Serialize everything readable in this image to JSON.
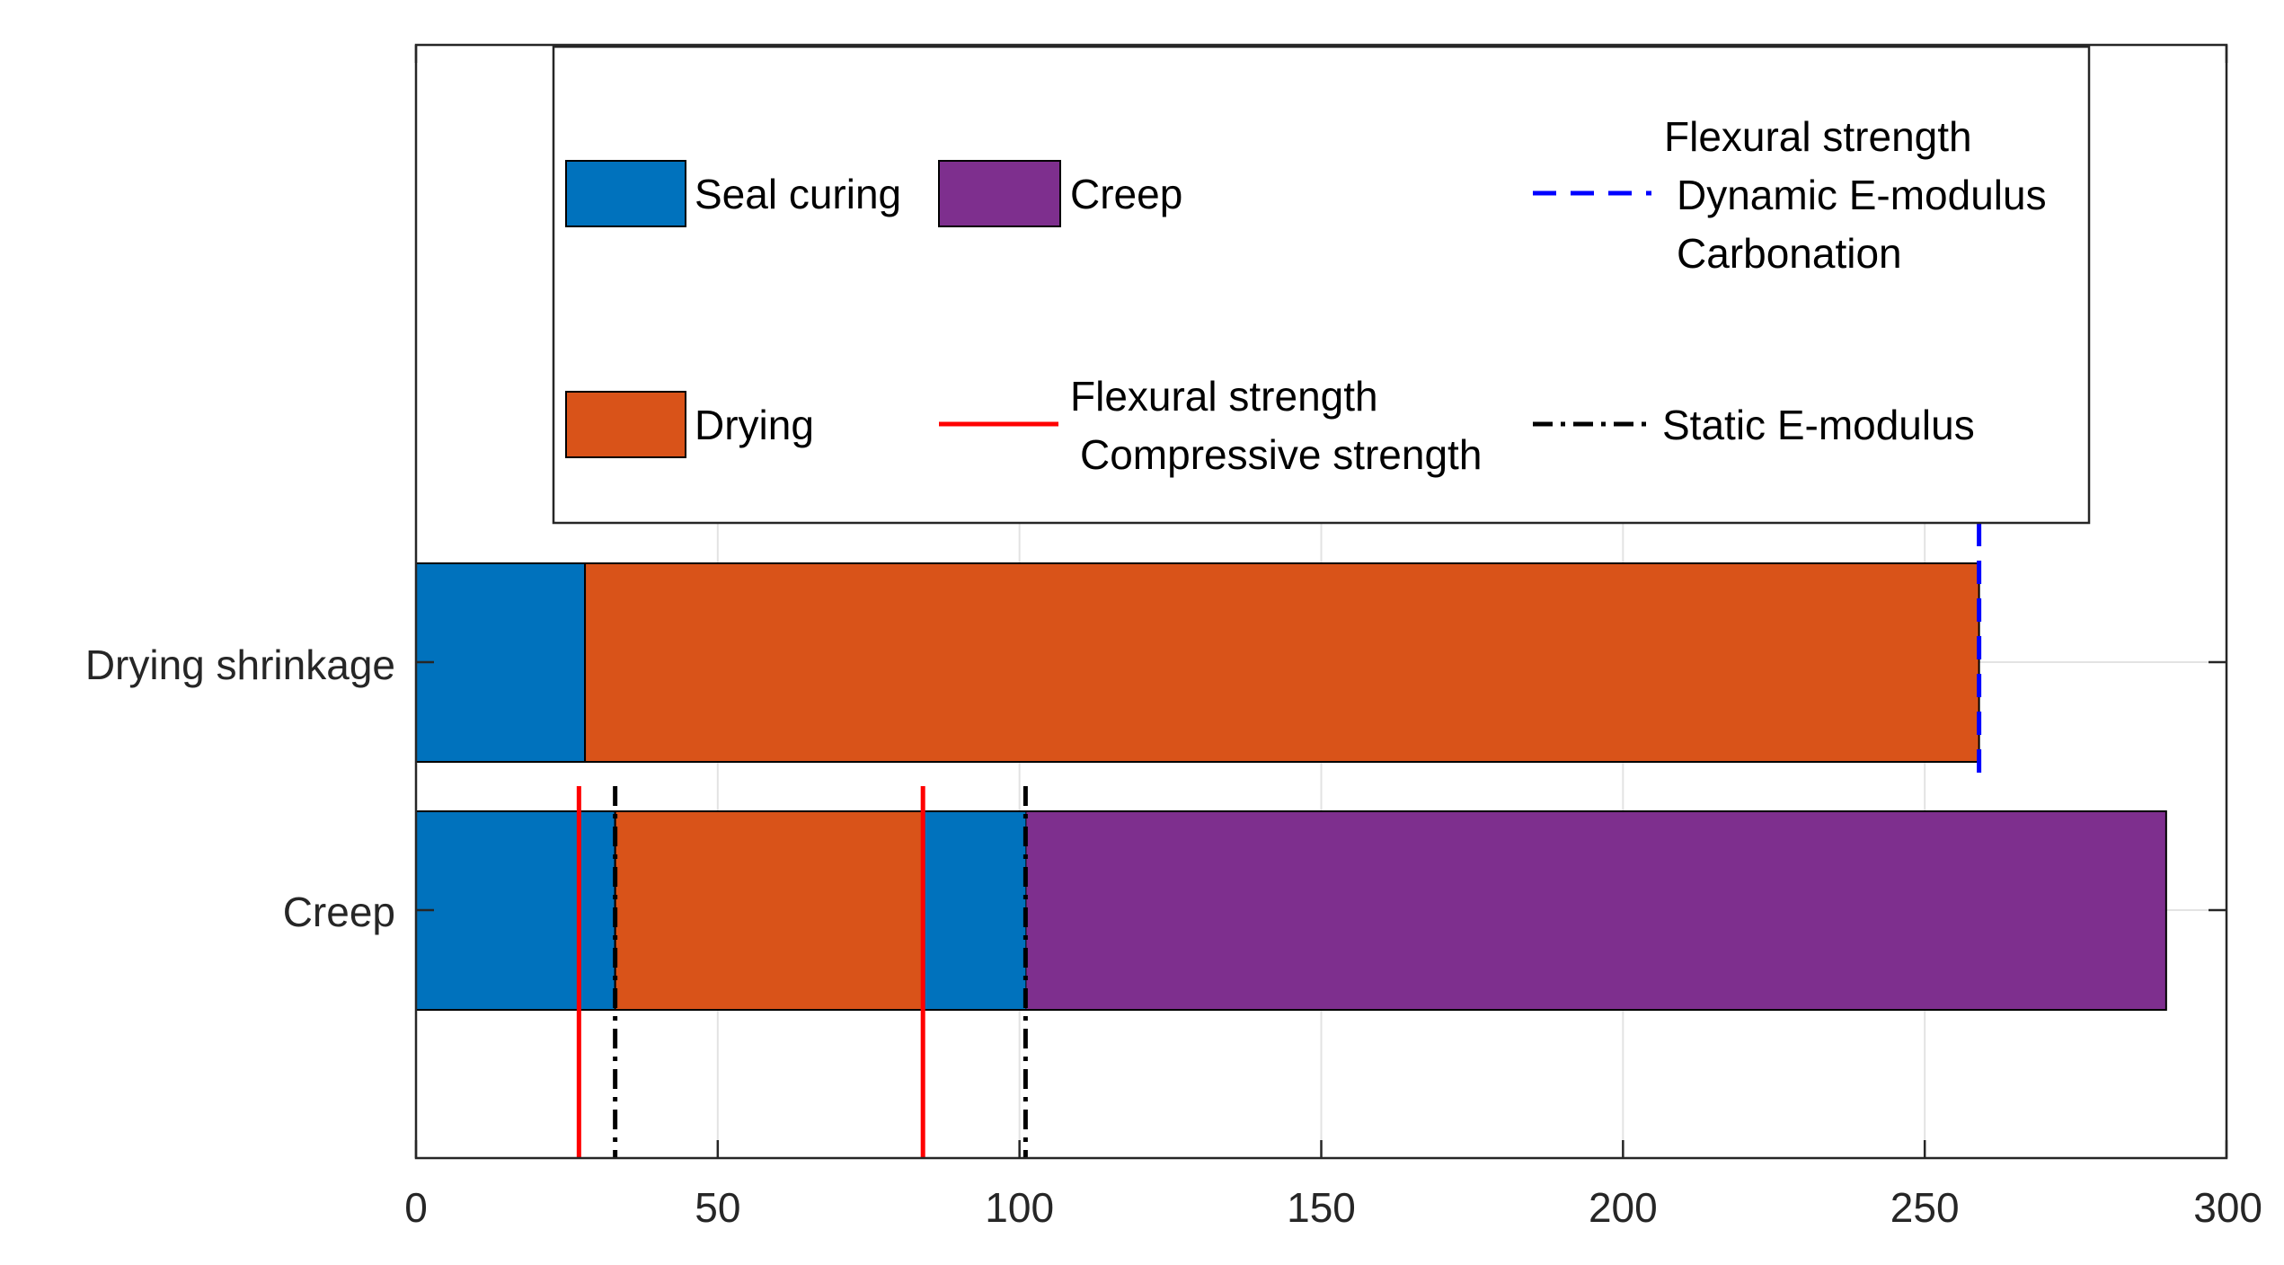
{
  "chart_data": {
    "type": "bar",
    "orientation": "horizontal",
    "stacked": true,
    "title": "",
    "xlabel": "",
    "ylabel": "",
    "xlim": [
      0,
      300
    ],
    "grid": true,
    "categories": [
      "Creep",
      "Drying shrinkage"
    ],
    "x_ticks": [
      0,
      50,
      100,
      150,
      200,
      250,
      300
    ],
    "x_tick_labels": [
      "0",
      "50",
      "100",
      "150",
      "200",
      "250",
      "300"
    ],
    "series": [
      {
        "name": "Seal curing",
        "color": "#0072BD",
        "category": "Creep",
        "start": 0,
        "end": 33
      },
      {
        "name": "Drying",
        "color": "#D95319",
        "category": "Creep",
        "start": 33,
        "end": 101
      },
      {
        "name": "Creep",
        "color": "#7E2F8E",
        "category": "Creep",
        "start": 101,
        "end": 290
      },
      {
        "name": "Seal curing",
        "color": "#0072BD",
        "category": "Drying shrinkage",
        "start": 0,
        "end": 28
      },
      {
        "name": "Drying",
        "color": "#D95319",
        "category": "Drying shrinkage",
        "start": 28,
        "end": 259
      }
    ],
    "blue_drying_overlay": {
      "category": "Creep",
      "start": 84,
      "end": 101,
      "color": "#0072BD"
    },
    "test_lines": [
      {
        "x": 27,
        "style": "solid",
        "color": "#FF0000",
        "label": "Flexural strength Compressive strength",
        "span": "creep"
      },
      {
        "x": 84,
        "style": "solid",
        "color": "#FF0000",
        "label": "Flexural strength Compressive strength",
        "span": "creep"
      },
      {
        "x": 33,
        "style": "dashdot",
        "color": "#000000",
        "label": "Static E-modulus",
        "span": "creep"
      },
      {
        "x": 101,
        "style": "dashdot",
        "color": "#000000",
        "label": "Static E-modulus",
        "span": "creep"
      },
      {
        "x": 259,
        "style": "dashed",
        "color": "#0000FF",
        "label": "Flexural strength Dynamic E-modulus Carbonation",
        "span": "shrinkage"
      }
    ],
    "legend": {
      "position": "top",
      "seal_curing": "Seal curing",
      "creep": "Creep",
      "drying": "Drying",
      "red_line_1": "Flexural strength",
      "red_line_2": "Compressive strength",
      "blue_line_1": "Flexural strength",
      "blue_line_2": "Dynamic E-modulus",
      "blue_line_3": "Carbonation",
      "black_line": "Static E-modulus"
    },
    "colors": {
      "seal": "#0072BD",
      "drying": "#D95319",
      "creep": "#7E2F8E",
      "red": "#FF0000",
      "blue": "#0000FF",
      "black": "#000000"
    }
  }
}
